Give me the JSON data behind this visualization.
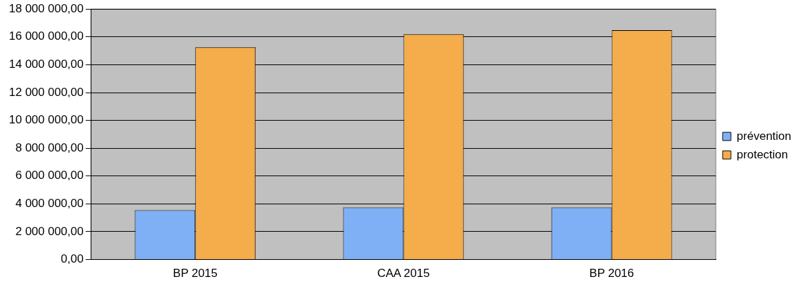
{
  "chart_data": {
    "type": "bar",
    "categories": [
      "BP 2015",
      "CAA 2015",
      "BP 2016"
    ],
    "series": [
      {
        "name": "prévention",
        "color": "#7fb0f5",
        "values": [
          3550000,
          3750000,
          3750000
        ]
      },
      {
        "name": "protection",
        "color": "#f5ac4a",
        "values": [
          15260000,
          16200000,
          16480000
        ]
      }
    ],
    "ylim": [
      0,
      18000000
    ],
    "yticks": [
      {
        "value": 0,
        "label": "0,00"
      },
      {
        "value": 2000000,
        "label": "2 000 000,00"
      },
      {
        "value": 4000000,
        "label": "4 000 000,00"
      },
      {
        "value": 6000000,
        "label": "6 000 000,00"
      },
      {
        "value": 8000000,
        "label": "8 000 000,00"
      },
      {
        "value": 10000000,
        "label": "10 000 000,00"
      },
      {
        "value": 12000000,
        "label": "12 000 000,00"
      },
      {
        "value": 14000000,
        "label": "14 000 000,00"
      },
      {
        "value": 16000000,
        "label": "16 000 000,00"
      },
      {
        "value": 18000000,
        "label": "18 000 000,00"
      }
    ],
    "grid": "y",
    "legend": "right"
  }
}
